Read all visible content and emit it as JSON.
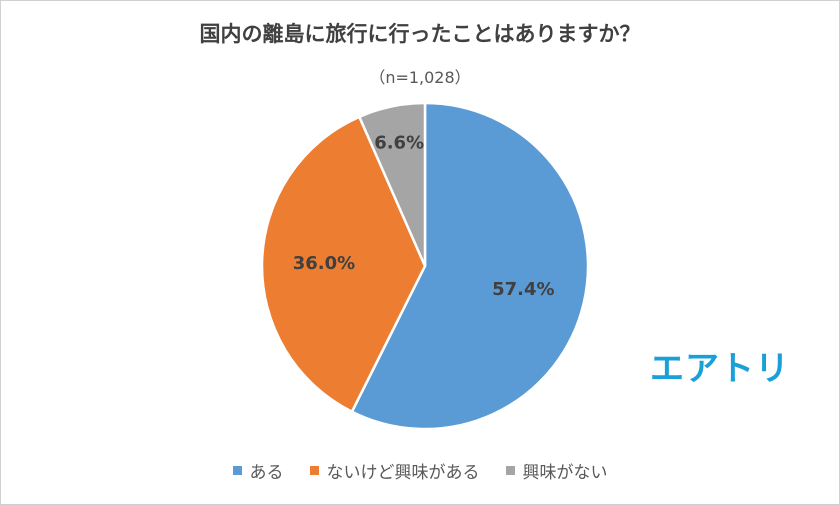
{
  "chart_data": {
    "type": "pie",
    "title": "国内の離島に旅行に行ったことはありますか？",
    "subtitle": "（n=1,028）",
    "categories": [
      "ある",
      "ないけど興味がある",
      "興味がない"
    ],
    "values": [
      57.4,
      36.0,
      6.6
    ],
    "value_labels": [
      "57.4%",
      "36.0%",
      "6.6%"
    ],
    "colors": [
      "#5b9bd5",
      "#ed7d31",
      "#a5a5a5"
    ],
    "legend_position": "bottom",
    "start_angle_deg": 0,
    "direction": "clockwise"
  },
  "logo": {
    "text": "エアトリ",
    "color": "#1aa0d8"
  }
}
